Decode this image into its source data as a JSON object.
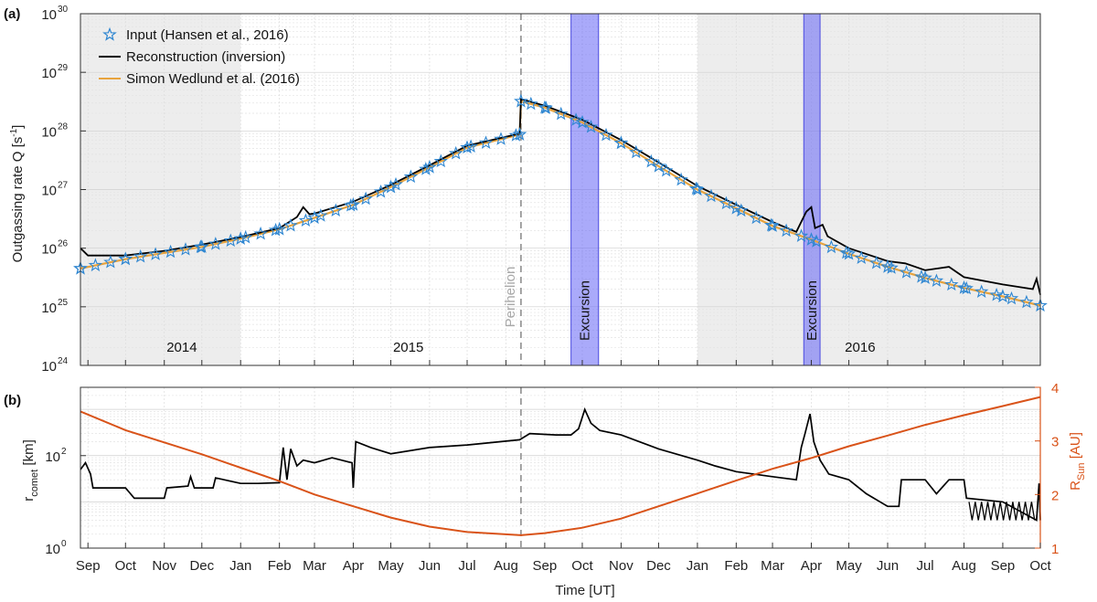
{
  "chart_data": [
    {
      "panel_label": "(a)",
      "type": "line",
      "y_scale": "log",
      "ylim": [
        1e+24,
        1e+30
      ],
      "ylabel_main": "Outgassing rate Q [s",
      "ylabel_sup": "-1",
      "ylabel_end": "]",
      "y_tick_base": "10",
      "y_tick_exponents": [
        "24",
        "25",
        "26",
        "27",
        "28",
        "29",
        "30"
      ],
      "x_range": [
        "2014-08-26",
        "2016-10-01"
      ],
      "year_labels": [
        {
          "text": "2014",
          "date": "2014-11-15"
        },
        {
          "text": "2015",
          "date": "2015-05-15"
        },
        {
          "text": "2016",
          "date": "2016-05-10"
        }
      ],
      "grey_shaded": [
        [
          "2014-08-26",
          "2015-01-01"
        ],
        [
          "2016-01-01",
          "2016-10-01"
        ]
      ],
      "perihelion": {
        "date": "2015-08-13",
        "label": "Perihelion"
      },
      "excursions": [
        {
          "start": "2015-09-22",
          "end": "2015-10-14",
          "label": "Excursion"
        },
        {
          "start": "2016-03-26",
          "end": "2016-04-08",
          "label": "Excursion"
        }
      ],
      "legend": {
        "position": "top-left",
        "entries": [
          "Input (Hansen et al., 2016)",
          "Reconstruction (inversion)",
          "Simon Wedlund et al. (2016)"
        ]
      },
      "series": [
        {
          "name": "Simon Wedlund et al. (2016)",
          "color": "#E8A33D",
          "points": [
            [
              "2014-08-26",
              4.5e+25
            ],
            [
              "2014-10-01",
              6.5e+25
            ],
            [
              "2014-12-01",
              1.05e+26
            ],
            [
              "2015-01-01",
              1.45e+26
            ],
            [
              "2015-02-01",
              2.1e+26
            ],
            [
              "2015-03-01",
              3.3e+26
            ],
            [
              "2015-04-01",
              5.5e+26
            ],
            [
              "2015-05-01",
              1.1e+27
            ],
            [
              "2015-06-01",
              2.4e+27
            ],
            [
              "2015-07-01",
              5.2e+27
            ],
            [
              "2015-08-12",
              8.7e+27
            ],
            [
              "2015-08-13",
              3.2e+28
            ],
            [
              "2015-09-01",
              2.5e+28
            ],
            [
              "2015-10-01",
              1.4e+28
            ],
            [
              "2015-11-01",
              6.2e+27
            ],
            [
              "2015-12-01",
              2.5e+27
            ],
            [
              "2016-01-01",
              1e+27
            ],
            [
              "2016-02-01",
              4.8e+26
            ],
            [
              "2016-03-01",
              2.4e+26
            ],
            [
              "2016-04-01",
              1.4e+26
            ],
            [
              "2016-05-01",
              8e+25
            ],
            [
              "2016-06-01",
              4.8e+25
            ],
            [
              "2016-07-01",
              3.1e+25
            ],
            [
              "2016-08-01",
              2.1e+25
            ],
            [
              "2016-09-01",
              1.5e+25
            ],
            [
              "2016-10-01",
              1.05e+25
            ]
          ]
        },
        {
          "name": "Reconstruction (inversion)",
          "color": "#000000",
          "points": [
            [
              "2014-08-26",
              1e+26
            ],
            [
              "2014-09-01",
              7.5e+25
            ],
            [
              "2014-10-01",
              7.5e+25
            ],
            [
              "2014-11-01",
              9e+25
            ],
            [
              "2014-12-01",
              1.15e+26
            ],
            [
              "2015-01-01",
              1.55e+26
            ],
            [
              "2015-02-01",
              2.2e+26
            ],
            [
              "2015-02-15",
              3.4e+26
            ],
            [
              "2015-02-20",
              5e+26
            ],
            [
              "2015-02-25",
              3.8e+26
            ],
            [
              "2015-03-01",
              3.9e+26
            ],
            [
              "2015-04-01",
              6.2e+26
            ],
            [
              "2015-05-01",
              1.2e+27
            ],
            [
              "2015-06-01",
              2.6e+27
            ],
            [
              "2015-07-01",
              5.6e+27
            ],
            [
              "2015-08-12",
              9e+27
            ],
            [
              "2015-08-13",
              3.5e+28
            ],
            [
              "2015-09-01",
              2.7e+28
            ],
            [
              "2015-10-01",
              1.55e+28
            ],
            [
              "2015-11-01",
              7e+27
            ],
            [
              "2015-12-01",
              2.9e+27
            ],
            [
              "2016-01-01",
              1.15e+27
            ],
            [
              "2016-02-01",
              5.5e+26
            ],
            [
              "2016-03-01",
              2.8e+26
            ],
            [
              "2016-03-20",
              1.9e+26
            ],
            [
              "2016-03-28",
              4.2e+26
            ],
            [
              "2016-04-01",
              5e+26
            ],
            [
              "2016-04-04",
              2.2e+26
            ],
            [
              "2016-04-10",
              2.5e+26
            ],
            [
              "2016-04-14",
              1.6e+26
            ],
            [
              "2016-05-01",
              1e+26
            ],
            [
              "2016-06-01",
              6e+25
            ],
            [
              "2016-06-15",
              5.5e+25
            ],
            [
              "2016-07-01",
              4.2e+25
            ],
            [
              "2016-07-20",
              4.8e+25
            ],
            [
              "2016-08-01",
              3.2e+25
            ],
            [
              "2016-09-01",
              2.4e+25
            ],
            [
              "2016-09-25",
              2e+25
            ],
            [
              "2016-09-28",
              3e+25
            ],
            [
              "2016-10-01",
              1.6e+25
            ]
          ]
        },
        {
          "name": "Input (Hansen et al., 2016)",
          "color": "#2E86D1",
          "marker": "star",
          "points": [
            [
              "2014-08-26",
              4.5e+25
            ],
            [
              "2014-10-01",
              6.5e+25
            ],
            [
              "2014-12-01",
              1.05e+26
            ],
            [
              "2015-01-01",
              1.45e+26
            ],
            [
              "2015-02-01",
              2.1e+26
            ],
            [
              "2015-03-01",
              3.3e+26
            ],
            [
              "2015-04-01",
              5.5e+26
            ],
            [
              "2015-05-01",
              1.1e+27
            ],
            [
              "2015-06-01",
              2.4e+27
            ],
            [
              "2015-07-01",
              5.2e+27
            ],
            [
              "2015-08-12",
              8.7e+27
            ],
            [
              "2015-08-13",
              3.2e+28
            ],
            [
              "2015-09-01",
              2.5e+28
            ],
            [
              "2015-10-01",
              1.4e+28
            ],
            [
              "2015-11-01",
              6.2e+27
            ],
            [
              "2015-12-01",
              2.5e+27
            ],
            [
              "2016-01-01",
              1e+27
            ],
            [
              "2016-02-01",
              4.8e+26
            ],
            [
              "2016-03-01",
              2.4e+26
            ],
            [
              "2016-04-01",
              1.4e+26
            ],
            [
              "2016-05-01",
              8e+25
            ],
            [
              "2016-06-01",
              4.8e+25
            ],
            [
              "2016-07-01",
              3.1e+25
            ],
            [
              "2016-08-01",
              2.1e+25
            ],
            [
              "2016-09-01",
              1.5e+25
            ],
            [
              "2016-10-01",
              1.05e+25
            ]
          ]
        }
      ]
    },
    {
      "panel_label": "(b)",
      "type": "line",
      "left_axis": {
        "scale": "log",
        "ylim": [
          1,
          3000
        ],
        "label_main": "r",
        "label_sub": "comet",
        "label_end": " [km]",
        "tick_base": "10",
        "tick_exponents": [
          "0",
          "2"
        ]
      },
      "right_axis": {
        "scale": "linear",
        "ylim": [
          1,
          4
        ],
        "ticks": [
          "1",
          "2",
          "3",
          "4"
        ],
        "label_main": "R",
        "label_sub": "Sun",
        "label_end": " [AU]",
        "color": "#D95319"
      },
      "perihelion_date": "2015-08-13",
      "series": [
        {
          "name": "r_comet",
          "axis": "left",
          "color": "#000000",
          "points": [
            [
              "2014-08-26",
              50
            ],
            [
              "2014-08-30",
              70
            ],
            [
              "2014-09-03",
              40
            ],
            [
              "2014-09-05",
              20
            ],
            [
              "2014-10-01",
              20
            ],
            [
              "2014-10-08",
              12
            ],
            [
              "2014-11-01",
              12
            ],
            [
              "2014-11-03",
              20
            ],
            [
              "2014-11-20",
              22
            ],
            [
              "2014-11-22",
              35
            ],
            [
              "2014-11-25",
              20
            ],
            [
              "2014-12-10",
              20
            ],
            [
              "2014-12-12",
              33
            ],
            [
              "2015-01-01",
              25
            ],
            [
              "2015-01-15",
              25
            ],
            [
              "2015-02-01",
              26
            ],
            [
              "2015-02-04",
              150
            ],
            [
              "2015-02-07",
              30
            ],
            [
              "2015-02-10",
              140
            ],
            [
              "2015-02-15",
              60
            ],
            [
              "2015-02-20",
              80
            ],
            [
              "2015-03-01",
              70
            ],
            [
              "2015-03-15",
              90
            ],
            [
              "2015-03-31",
              70
            ],
            [
              "2015-04-01",
              20
            ],
            [
              "2015-04-03",
              200
            ],
            [
              "2015-04-15",
              150
            ],
            [
              "2015-05-01",
              110
            ],
            [
              "2015-06-01",
              150
            ],
            [
              "2015-07-01",
              170
            ],
            [
              "2015-08-12",
              220
            ],
            [
              "2015-08-20",
              300
            ],
            [
              "2015-09-10",
              280
            ],
            [
              "2015-09-22",
              280
            ],
            [
              "2015-09-28",
              380
            ],
            [
              "2015-10-03",
              1000
            ],
            [
              "2015-10-08",
              500
            ],
            [
              "2015-10-15",
              350
            ],
            [
              "2015-11-01",
              280
            ],
            [
              "2015-12-01",
              140
            ],
            [
              "2016-01-01",
              80
            ],
            [
              "2016-01-15",
              60
            ],
            [
              "2016-02-01",
              45
            ],
            [
              "2016-03-01",
              35
            ],
            [
              "2016-03-20",
              30
            ],
            [
              "2016-03-24",
              150
            ],
            [
              "2016-03-27",
              300
            ],
            [
              "2016-03-31",
              800
            ],
            [
              "2016-04-03",
              200
            ],
            [
              "2016-04-08",
              80
            ],
            [
              "2016-04-15",
              40
            ],
            [
              "2016-05-01",
              30
            ],
            [
              "2016-05-15",
              15
            ],
            [
              "2016-06-01",
              8
            ],
            [
              "2016-06-10",
              8
            ],
            [
              "2016-06-12",
              30
            ],
            [
              "2016-07-01",
              30
            ],
            [
              "2016-07-10",
              15
            ],
            [
              "2016-07-20",
              30
            ],
            [
              "2016-08-01",
              30
            ],
            [
              "2016-08-03",
              12
            ],
            [
              "2016-09-01",
              10
            ],
            [
              "2016-09-28",
              4
            ],
            [
              "2016-09-30",
              25
            ],
            [
              "2016-10-01",
              4
            ]
          ]
        },
        {
          "name": "R_Sun",
          "axis": "right",
          "color": "#D95319",
          "points": [
            [
              "2014-08-26",
              3.55
            ],
            [
              "2014-10-01",
              3.2
            ],
            [
              "2014-12-01",
              2.75
            ],
            [
              "2015-01-01",
              2.5
            ],
            [
              "2015-02-01",
              2.25
            ],
            [
              "2015-03-01",
              2.0
            ],
            [
              "2015-04-01",
              1.78
            ],
            [
              "2015-05-01",
              1.57
            ],
            [
              "2015-06-01",
              1.4
            ],
            [
              "2015-07-01",
              1.3
            ],
            [
              "2015-08-13",
              1.24
            ],
            [
              "2015-09-01",
              1.28
            ],
            [
              "2015-10-01",
              1.38
            ],
            [
              "2015-11-01",
              1.55
            ],
            [
              "2015-12-01",
              1.78
            ],
            [
              "2016-01-01",
              2.02
            ],
            [
              "2016-02-01",
              2.26
            ],
            [
              "2016-03-01",
              2.48
            ],
            [
              "2016-04-01",
              2.68
            ],
            [
              "2016-05-01",
              2.9
            ],
            [
              "2016-06-01",
              3.1
            ],
            [
              "2016-07-01",
              3.3
            ],
            [
              "2016-08-01",
              3.48
            ],
            [
              "2016-09-01",
              3.65
            ],
            [
              "2016-10-01",
              3.82
            ]
          ]
        }
      ]
    }
  ],
  "x_axis": {
    "label": "Time [UT]",
    "ticks": [
      {
        "text": "Sep",
        "date": "2014-09-01"
      },
      {
        "text": "Oct",
        "date": "2014-10-01"
      },
      {
        "text": "Nov",
        "date": "2014-11-01"
      },
      {
        "text": "Dec",
        "date": "2014-12-01"
      },
      {
        "text": "Jan",
        "date": "2015-01-01"
      },
      {
        "text": "Feb",
        "date": "2015-02-01"
      },
      {
        "text": "Mar",
        "date": "2015-03-01"
      },
      {
        "text": "Apr",
        "date": "2015-04-01"
      },
      {
        "text": "May",
        "date": "2015-05-01"
      },
      {
        "text": "Jun",
        "date": "2015-06-01"
      },
      {
        "text": "Jul",
        "date": "2015-07-01"
      },
      {
        "text": "Aug",
        "date": "2015-08-01"
      },
      {
        "text": "Sep",
        "date": "2015-09-01"
      },
      {
        "text": "Oct",
        "date": "2015-10-01"
      },
      {
        "text": "Nov",
        "date": "2015-11-01"
      },
      {
        "text": "Dec",
        "date": "2015-12-01"
      },
      {
        "text": "Jan",
        "date": "2016-01-01"
      },
      {
        "text": "Feb",
        "date": "2016-02-01"
      },
      {
        "text": "Mar",
        "date": "2016-03-01"
      },
      {
        "text": "Apr",
        "date": "2016-04-01"
      },
      {
        "text": "May",
        "date": "2016-05-01"
      },
      {
        "text": "Jun",
        "date": "2016-06-01"
      },
      {
        "text": "Jul",
        "date": "2016-07-01"
      },
      {
        "text": "Aug",
        "date": "2016-08-01"
      },
      {
        "text": "Sep",
        "date": "2016-09-01"
      },
      {
        "text": "Oct",
        "date": "2016-10-01"
      }
    ]
  }
}
